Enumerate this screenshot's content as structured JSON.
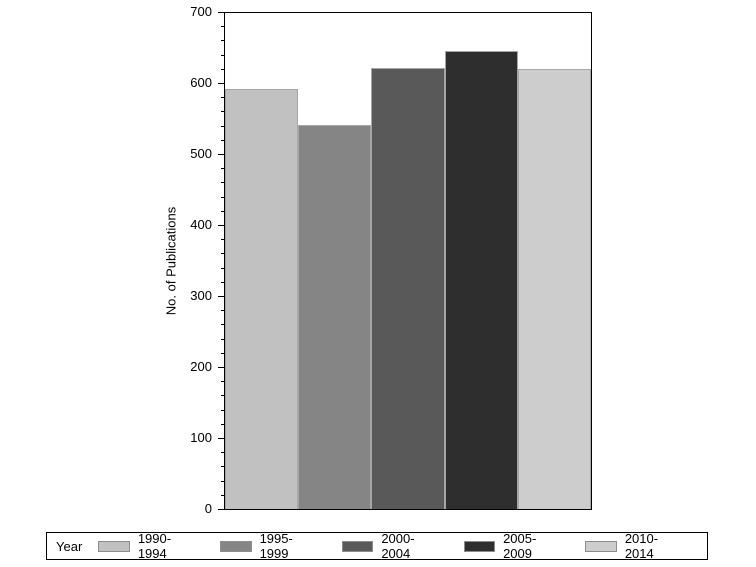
{
  "chart_data": {
    "type": "bar",
    "title": "",
    "legend_title": "Year",
    "categories": [
      "1990-1994",
      "1995-1999",
      "2000-2004",
      "2005-2009",
      "2010-2014"
    ],
    "values": [
      593,
      542,
      622,
      646,
      621
    ],
    "colors": [
      "#c1c1c1",
      "#858585",
      "#595959",
      "#2e2e2e",
      "#cdcdcd"
    ],
    "bar_outline_color": "#a6a6a6",
    "xlabel": "",
    "ylabel": "No. of Publications",
    "ylim": [
      0,
      700
    ],
    "y_ticks": [
      0,
      100,
      200,
      300,
      400,
      500,
      600,
      700
    ],
    "y_minor_step": 20,
    "grid": false,
    "frame": true,
    "legend_position": "bottom",
    "axis_color": "#000000",
    "background": "#ffffff"
  }
}
